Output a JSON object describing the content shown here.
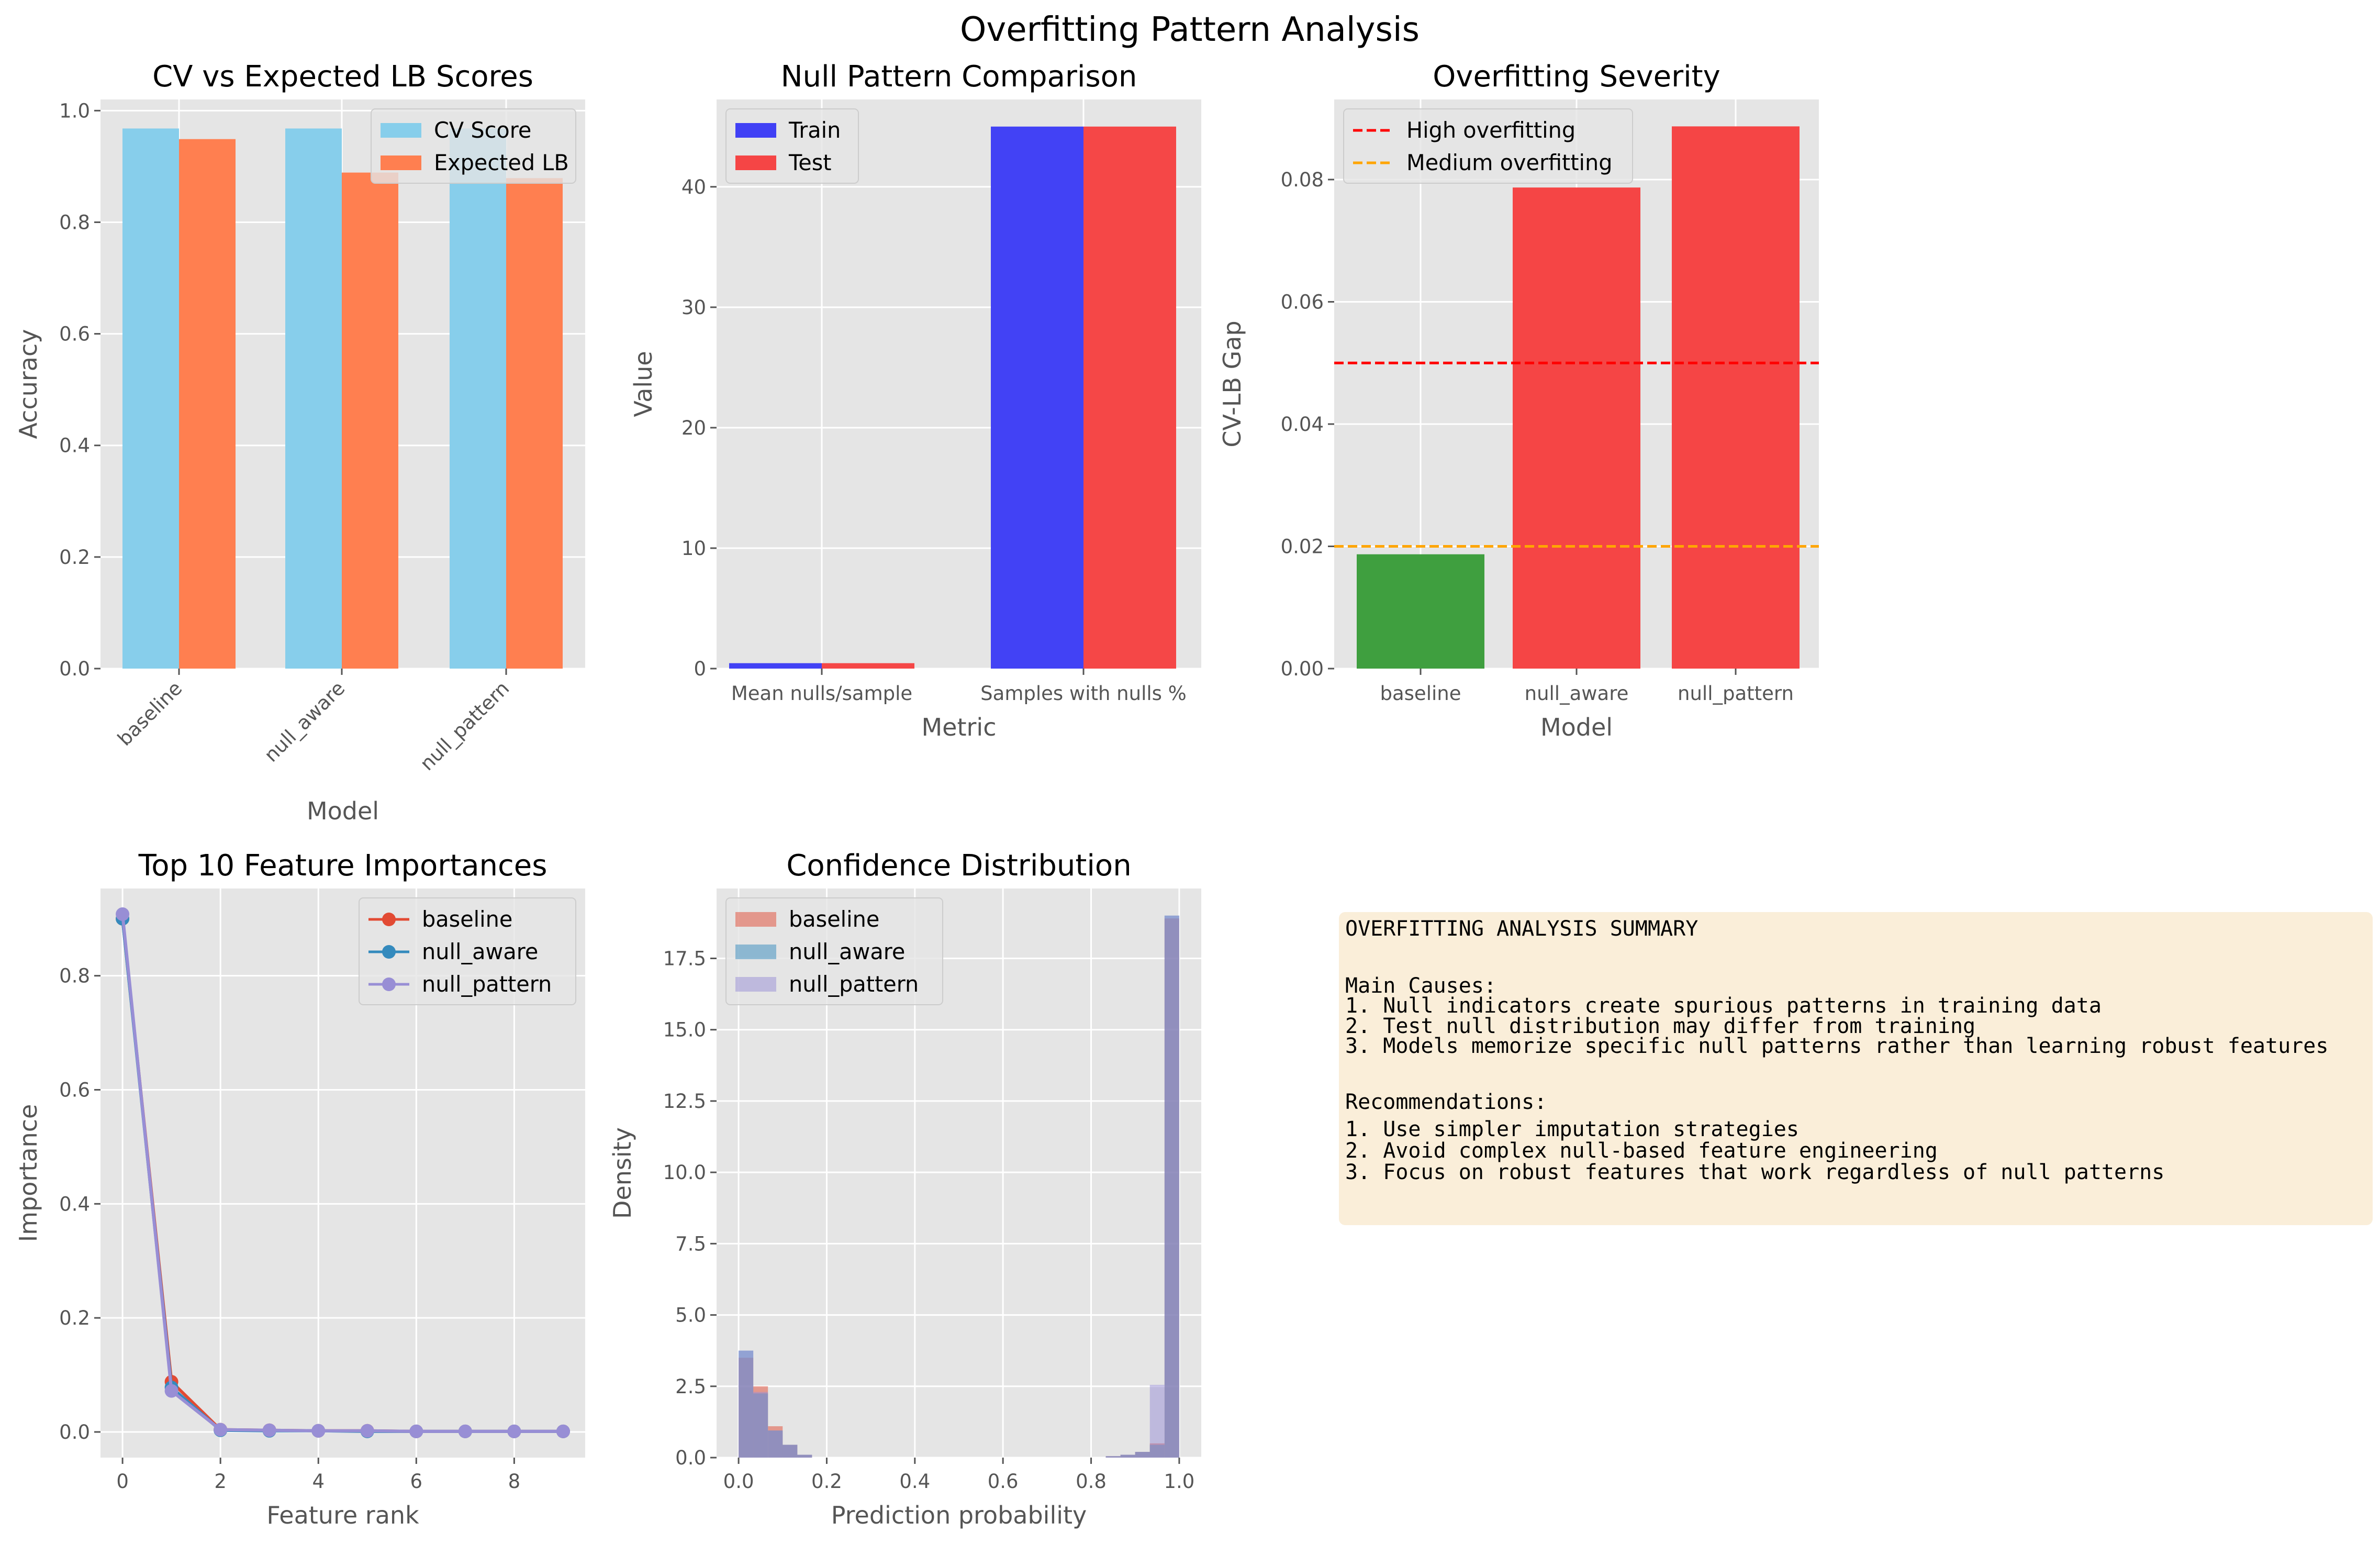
{
  "figure": {
    "suptitle": "Overfitting Pattern Analysis"
  },
  "colors": {
    "cv": "#87ceeb",
    "lb": "#ff7f50",
    "train": "#4040f5",
    "test": "#f54545",
    "severity_low": "#3f9f3f",
    "severity_high": "#f54545",
    "high_line": "#ff0000",
    "medium_line": "#ffa500",
    "baseline": "#e24a33",
    "null_aware": "#348abd",
    "null_pattern": "#988ed5",
    "panel_bg": "#e5e5e5",
    "grid": "#ffffff",
    "box": "#f5deb3"
  },
  "chart_data": [
    {
      "type": "bar",
      "title": "CV vs Expected LB Scores",
      "xlabel": "Model",
      "ylabel": "Accuracy",
      "categories": [
        "baseline",
        "null_aware",
        "null_pattern"
      ],
      "series": [
        {
          "name": "CV Score",
          "values": [
            0.968,
            0.968,
            0.968
          ]
        },
        {
          "name": "Expected LB",
          "values": [
            0.949,
            0.889,
            0.879
          ]
        }
      ],
      "ylim": [
        0,
        1.02
      ],
      "yticks": [
        "0.0",
        "0.2",
        "0.4",
        "0.6",
        "0.8",
        "1.0"
      ],
      "grid": true,
      "legend": "upper right"
    },
    {
      "type": "bar",
      "title": "Null Pattern Comparison",
      "xlabel": "Metric",
      "ylabel": "Value",
      "categories": [
        "Mean nulls/sample",
        "Samples with nulls %"
      ],
      "series": [
        {
          "name": "Train",
          "values": [
            0.45,
            45.0
          ]
        },
        {
          "name": "Test",
          "values": [
            0.45,
            45.0
          ]
        }
      ],
      "ylim": [
        0,
        47.25
      ],
      "yticks": [
        "0",
        "10",
        "20",
        "30",
        "40"
      ],
      "grid": true,
      "legend": "upper left"
    },
    {
      "type": "bar",
      "title": "Overfitting Severity",
      "xlabel": "Model",
      "ylabel": "CV-LB Gap",
      "categories": [
        "baseline",
        "null_aware",
        "null_pattern"
      ],
      "values": [
        0.0187,
        0.0787,
        0.0887
      ],
      "thresholds": [
        {
          "name": "High overfitting",
          "value": 0.05
        },
        {
          "name": "Medium overfitting",
          "value": 0.02
        }
      ],
      "ylim": [
        0,
        0.0931
      ],
      "yticks": [
        "0.00",
        "0.02",
        "0.04",
        "0.06",
        "0.08"
      ],
      "grid": true,
      "legend": "upper left"
    },
    {
      "type": "line",
      "title": "Top 10 Feature Importances",
      "xlabel": "Feature rank",
      "ylabel": "Importance",
      "x": [
        0,
        1,
        2,
        3,
        4,
        5,
        6,
        7,
        8,
        9
      ],
      "series": [
        {
          "name": "baseline",
          "values": [
            0.9,
            0.088,
            0.004,
            0.003,
            0.002,
            0.002,
            0.001,
            0.001,
            0.001,
            0.001
          ]
        },
        {
          "name": "null_aware",
          "values": [
            0.9,
            0.078,
            0.003,
            0.002,
            0.002,
            0.001,
            0.001,
            0.001,
            0.001,
            0.001
          ]
        },
        {
          "name": "null_pattern",
          "values": [
            0.908,
            0.072,
            0.004,
            0.003,
            0.002,
            0.002,
            0.001,
            0.001,
            0.001,
            0.001
          ]
        }
      ],
      "xlim": [
        -0.45,
        9.45
      ],
      "ylim": [
        -0.045,
        0.953
      ],
      "xticks": [
        "0",
        "2",
        "4",
        "6",
        "8"
      ],
      "yticks": [
        "0.0",
        "0.2",
        "0.4",
        "0.6",
        "0.8"
      ],
      "grid": true,
      "legend": "upper right"
    },
    {
      "type": "histogram",
      "title": "Confidence Distribution",
      "xlabel": "Prediction probability",
      "ylabel": "Density",
      "bin_width": 0.0333,
      "series": [
        {
          "name": "baseline",
          "bins": [
            [
              0.0,
              3.5
            ],
            [
              0.0333,
              2.5
            ],
            [
              0.0667,
              1.1
            ],
            [
              0.1,
              0.45
            ],
            [
              0.1333,
              0.1
            ],
            [
              0.8333,
              0.05
            ],
            [
              0.8667,
              0.1
            ],
            [
              0.9,
              0.2
            ],
            [
              0.9333,
              0.5
            ],
            [
              0.9667,
              18.9
            ]
          ]
        },
        {
          "name": "null_aware",
          "bins": [
            [
              0.0,
              3.75
            ],
            [
              0.0333,
              2.25
            ],
            [
              0.0667,
              0.95
            ],
            [
              0.1,
              0.45
            ],
            [
              0.1333,
              0.1
            ],
            [
              0.8333,
              0.05
            ],
            [
              0.8667,
              0.1
            ],
            [
              0.9,
              0.2
            ],
            [
              0.9333,
              0.45
            ],
            [
              0.9667,
              19.0
            ]
          ]
        },
        {
          "name": "null_pattern",
          "bins": [
            [
              0.0,
              3.75
            ],
            [
              0.0333,
              2.3
            ],
            [
              0.0667,
              0.95
            ],
            [
              0.1,
              0.45
            ],
            [
              0.1333,
              0.1
            ],
            [
              0.8333,
              0.05
            ],
            [
              0.8667,
              0.1
            ],
            [
              0.9,
              0.2
            ],
            [
              0.9333,
              2.55
            ],
            [
              0.9667,
              19.0
            ]
          ]
        }
      ],
      "xlim": [
        -0.05,
        1.05
      ],
      "ylim": [
        0,
        19.95
      ],
      "xticks": [
        "0.0",
        "0.2",
        "0.4",
        "0.6",
        "0.8",
        "1.0"
      ],
      "yticks": [
        "0.0",
        "2.5",
        "5.0",
        "7.5",
        "10.0",
        "12.5",
        "15.0",
        "17.5"
      ],
      "grid": true,
      "legend": "upper left"
    }
  ],
  "summary": {
    "lines": [
      "OVERFITTING ANALYSIS SUMMARY",
      "",
      "Main Causes:",
      "1. Null indicators create spurious patterns in training data",
      "2. Test null distribution may differ from training",
      "3. Models memorize specific null patterns rather than learning robust features",
      "",
      "Recommendations:",
      "1. Use simpler imputation strategies",
      "2. Avoid complex null-based feature engineering",
      "3. Focus on robust features that work regardless of null patterns"
    ]
  }
}
